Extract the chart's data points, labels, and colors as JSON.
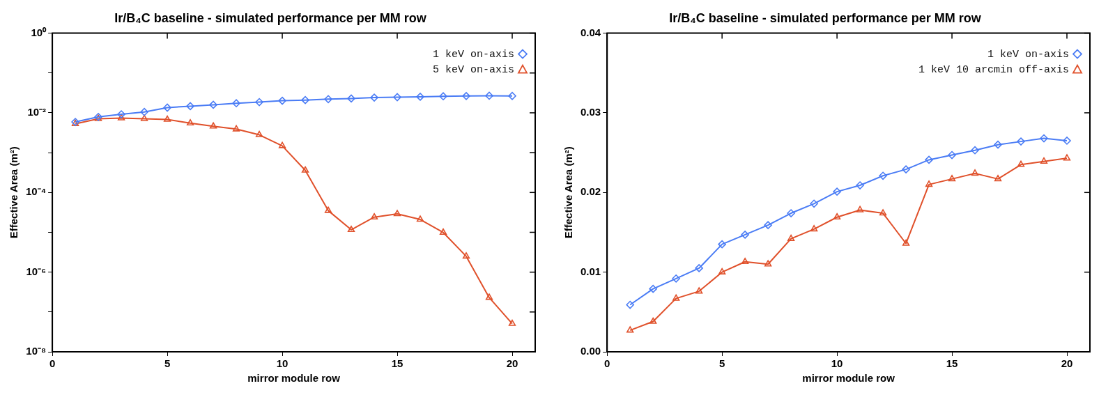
{
  "chart_data": [
    {
      "type": "line",
      "title": "Ir/B₄C baseline - simulated performance per MM row",
      "xlabel": "mirror module row",
      "ylabel": "Effective Area (m²)",
      "log": "y",
      "grid": false,
      "legend": "top right",
      "line_style": "solid",
      "xlim": [
        0,
        21
      ],
      "xticks": [
        0,
        5,
        10,
        15,
        20
      ],
      "ylim": [
        1e-08,
        1
      ],
      "yticks": [
        {
          "value": 1,
          "label": "10⁰"
        },
        {
          "value": 0.1,
          "label": null
        },
        {
          "value": 0.01,
          "label": "10⁻²"
        },
        {
          "value": 0.001,
          "label": null
        },
        {
          "value": 0.0001,
          "label": "10⁻⁴"
        },
        {
          "value": 1e-05,
          "label": null
        },
        {
          "value": 1e-06,
          "label": "10⁻⁶"
        },
        {
          "value": 1e-07,
          "label": null
        },
        {
          "value": 1e-08,
          "label": "10⁻⁸"
        }
      ],
      "x": [
        1,
        2,
        3,
        4,
        5,
        6,
        7,
        8,
        9,
        10,
        11,
        12,
        13,
        14,
        15,
        16,
        17,
        18,
        19,
        20
      ],
      "series": [
        {
          "name": "1 keV on-axis",
          "color": "#4a7cf5",
          "marker": "diamond",
          "values": [
            0.0059,
            0.0079,
            0.0092,
            0.0105,
            0.0135,
            0.0147,
            0.0159,
            0.0174,
            0.0186,
            0.0201,
            0.0209,
            0.0221,
            0.0229,
            0.0241,
            0.0247,
            0.0253,
            0.026,
            0.0264,
            0.0268,
            0.0265
          ]
        },
        {
          "name": "5 keV on-axis",
          "color": "#e0502a",
          "marker": "triangle",
          "values": [
            0.0053,
            0.0071,
            0.0074,
            0.0071,
            0.0068,
            0.0055,
            0.0046,
            0.0039,
            0.0028,
            0.00148,
            0.00036,
            3.5e-05,
            1.16e-05,
            2.4e-05,
            2.9e-05,
            2.1e-05,
            9.9e-06,
            2.5e-06,
            2.3e-07,
            5.1e-08
          ]
        }
      ]
    },
    {
      "type": "line",
      "title": "Ir/B₄C baseline - simulated performance per MM row",
      "xlabel": "mirror module row",
      "ylabel": "Effective Area (m²)",
      "grid": false,
      "legend": "top right",
      "line_style": "solid",
      "xlim": [
        0,
        21
      ],
      "xticks": [
        0,
        5,
        10,
        15,
        20
      ],
      "ylim": [
        0,
        0.04
      ],
      "yticks": [
        {
          "value": 0,
          "label": "0.00"
        },
        0.01,
        0.02,
        0.03,
        0.04
      ],
      "x": [
        1,
        2,
        3,
        4,
        5,
        6,
        7,
        8,
        9,
        10,
        11,
        12,
        13,
        14,
        15,
        16,
        17,
        18,
        19,
        20
      ],
      "series": [
        {
          "name": "1 keV on-axis",
          "color": "#4a7cf5",
          "marker": "diamond",
          "values": [
            0.0059,
            0.0079,
            0.0092,
            0.0105,
            0.0135,
            0.0147,
            0.0159,
            0.0174,
            0.0186,
            0.0201,
            0.0209,
            0.0221,
            0.0229,
            0.0241,
            0.0247,
            0.0253,
            0.026,
            0.0264,
            0.0268,
            0.0265
          ]
        },
        {
          "name": "1 keV 10 arcmin off-axis",
          "color": "#e0502a",
          "marker": "triangle",
          "values": [
            0.0027,
            0.0038,
            0.0067,
            0.0076,
            0.01,
            0.0113,
            0.011,
            0.0142,
            0.0154,
            0.0169,
            0.0178,
            0.0174,
            0.0136,
            0.021,
            0.0217,
            0.0224,
            0.0217,
            0.0235,
            0.0239,
            0.0243
          ]
        }
      ]
    }
  ]
}
